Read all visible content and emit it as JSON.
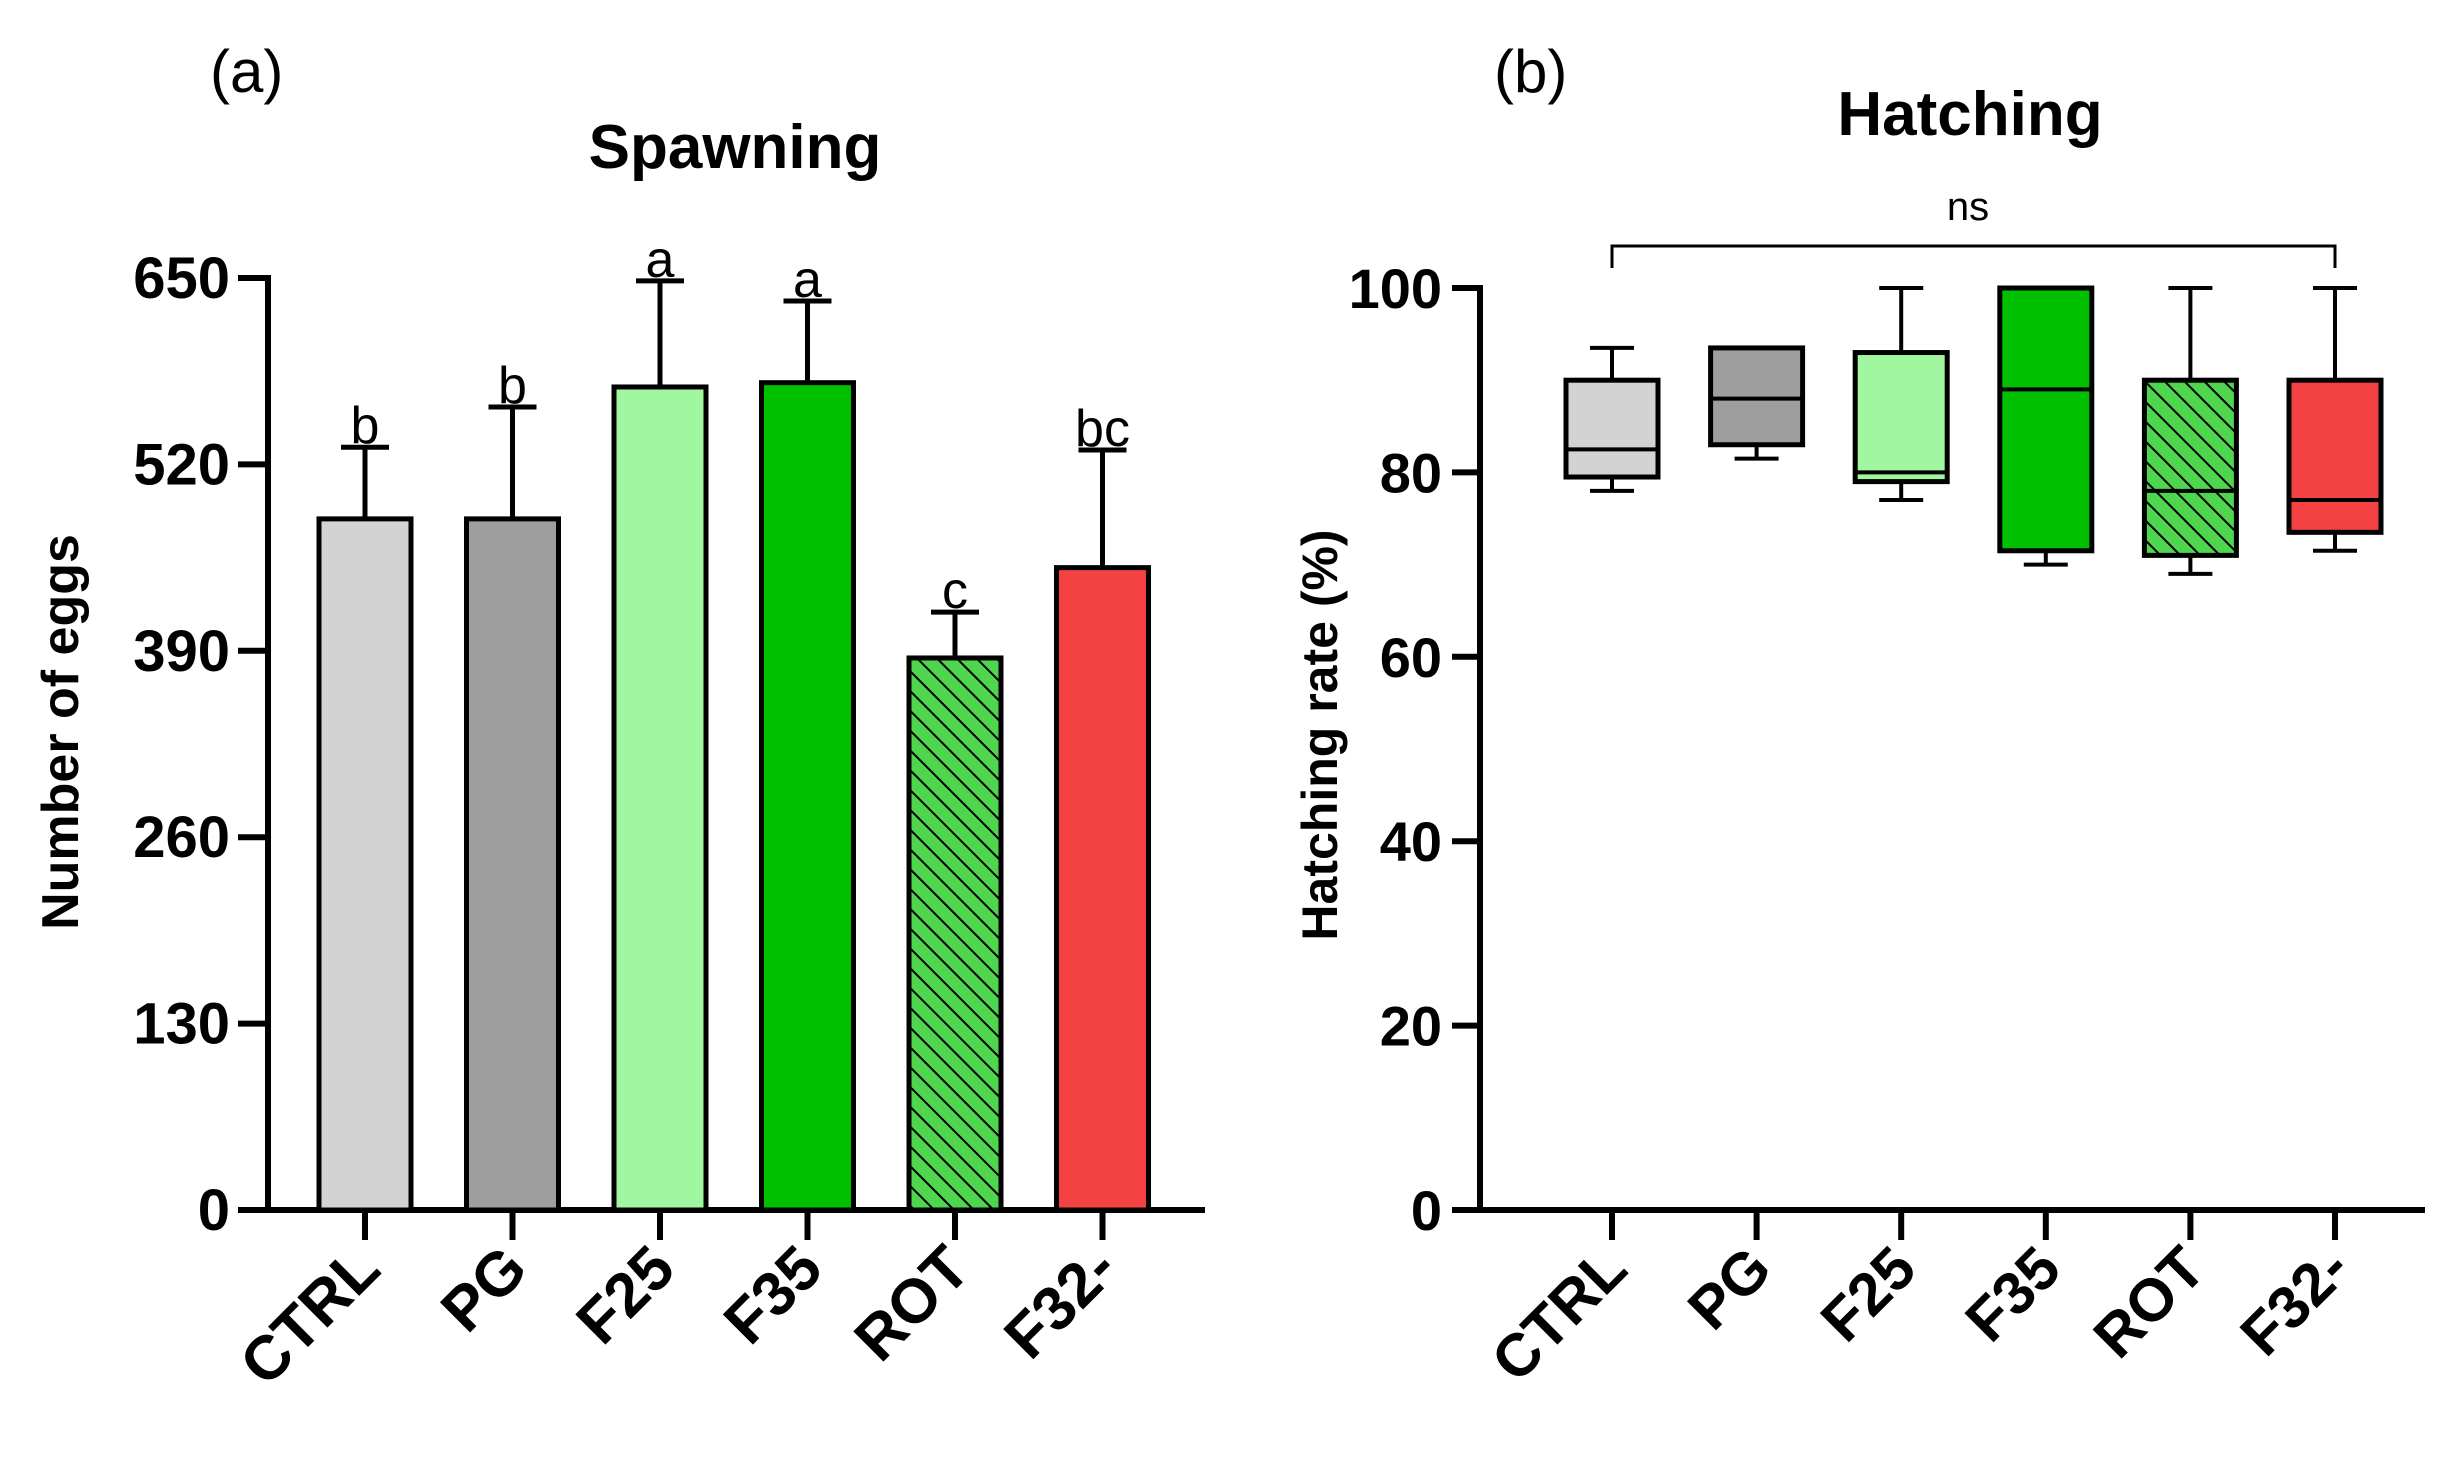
{
  "colors": {
    "axis": "#000000",
    "ctrl": "#d3d3d3",
    "pg": "#9e9e9e",
    "f25": "#a0f7a0",
    "f35": "#00c000",
    "rot": "#4ed64e",
    "f32": "#f44242"
  },
  "chart_data": [
    {
      "type": "bar",
      "panel": "(a)",
      "title": "Spawning",
      "xlabel": "",
      "ylabel": "Number of eggs",
      "ylim": [
        0,
        650
      ],
      "yticks": [
        0,
        130,
        260,
        390,
        520,
        650
      ],
      "categories": [
        "CTRL",
        "PG",
        "F25",
        "F35",
        "ROT",
        "F32-"
      ],
      "values": [
        482,
        482,
        574,
        577,
        385,
        448
      ],
      "error_upper": [
        532,
        560,
        648,
        634,
        417,
        530
      ],
      "significance": [
        "b",
        "b",
        "a",
        "a",
        "c",
        "bc"
      ],
      "hatched": [
        false,
        false,
        false,
        false,
        true,
        false
      ],
      "bar_colors": [
        "#d3d3d3",
        "#9e9e9e",
        "#a0f7a0",
        "#00c000",
        "#4ed64e",
        "#f44242"
      ]
    },
    {
      "type": "box",
      "panel": "(b)",
      "title": "Hatching",
      "xlabel": "",
      "ylabel": "Hatching rate (%)",
      "ylim": [
        0,
        100
      ],
      "yticks": [
        0,
        20,
        40,
        60,
        80,
        100
      ],
      "categories": [
        "CTRL",
        "PG",
        "F25",
        "F35",
        "ROT",
        "F32-"
      ],
      "boxes": [
        {
          "min": 78,
          "q1": 79.5,
          "median": 82.5,
          "q3": 90,
          "max": 93.5
        },
        {
          "min": 81.5,
          "q1": 83,
          "median": 88,
          "q3": 93.5,
          "max": 93.5
        },
        {
          "min": 77,
          "q1": 79,
          "median": 80,
          "q3": 93,
          "max": 100
        },
        {
          "min": 70,
          "q1": 71.5,
          "median": 89,
          "q3": 100,
          "max": 100
        },
        {
          "min": 69,
          "q1": 71,
          "median": 78,
          "q3": 90,
          "max": 100
        },
        {
          "min": 71.5,
          "q1": 73.5,
          "median": 77,
          "q3": 90,
          "max": 100
        }
      ],
      "hatched": [
        false,
        false,
        false,
        false,
        true,
        false
      ],
      "box_colors": [
        "#d3d3d3",
        "#9e9e9e",
        "#a0f7a0",
        "#00c000",
        "#4ed64e",
        "#f44242"
      ],
      "annotation": "ns"
    }
  ]
}
